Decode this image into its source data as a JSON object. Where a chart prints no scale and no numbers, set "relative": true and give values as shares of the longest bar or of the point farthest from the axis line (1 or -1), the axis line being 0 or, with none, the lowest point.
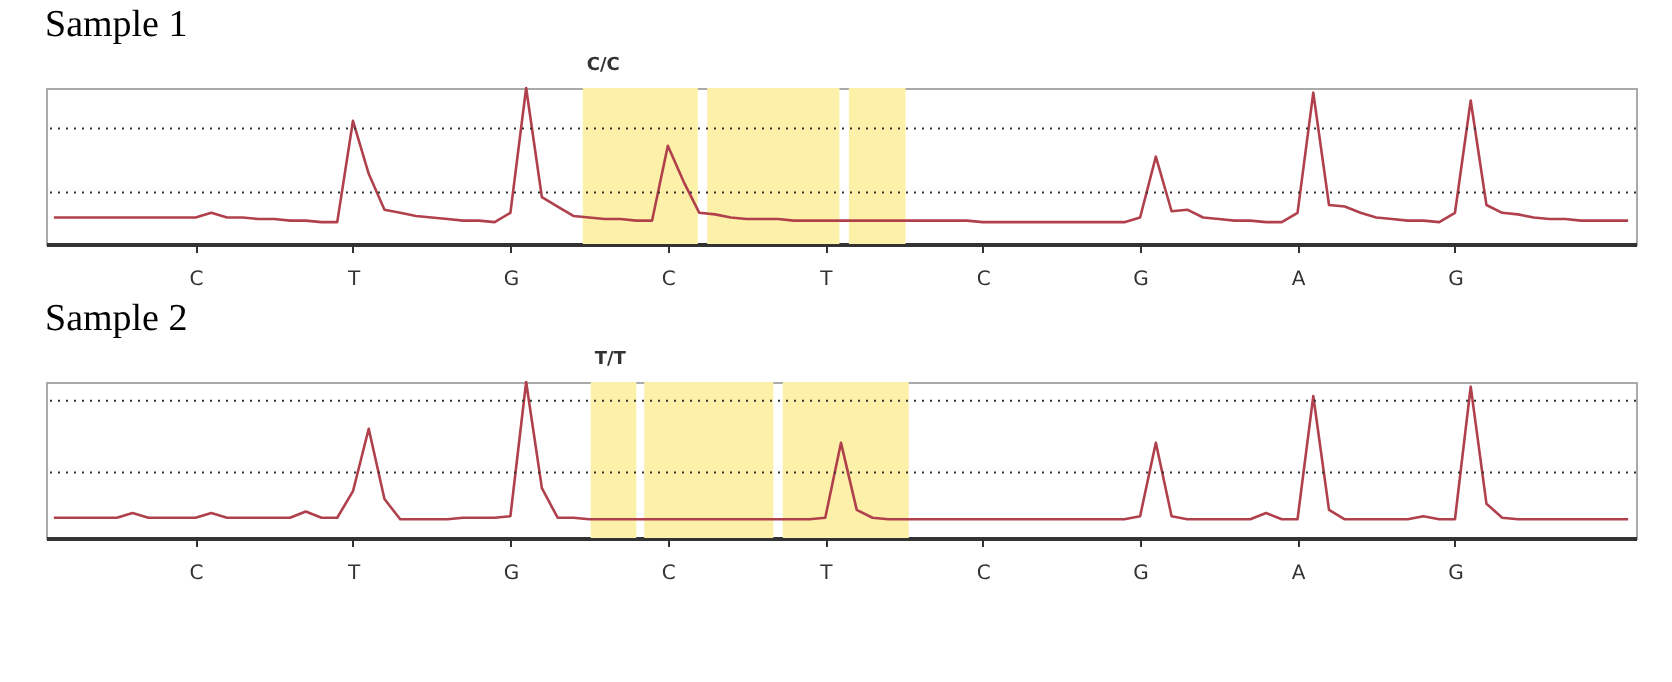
{
  "chart_data": [
    {
      "type": "line",
      "title": "Sample 1",
      "relative": true,
      "line_style": "solid",
      "marker": "none",
      "categories": [
        null,
        null,
        null,
        null,
        null,
        null,
        null,
        null,
        null,
        "C",
        null,
        null,
        null,
        null,
        null,
        null,
        null,
        null,
        null,
        "T",
        null,
        null,
        null,
        null,
        null,
        null,
        null,
        null,
        null,
        "G",
        null,
        null,
        null,
        null,
        null,
        null,
        null,
        null,
        null,
        "C",
        null,
        null,
        null,
        null,
        null,
        null,
        null,
        null,
        null,
        "T",
        null,
        null,
        null,
        null,
        null,
        null,
        null,
        null,
        null,
        "C",
        null,
        null,
        null,
        null,
        null,
        null,
        null,
        null,
        null,
        "G",
        null,
        null,
        null,
        null,
        null,
        null,
        null,
        null,
        null,
        "A",
        null,
        null,
        null,
        null,
        null,
        null,
        null,
        null,
        null,
        "G",
        null,
        null,
        null,
        null,
        null,
        null,
        null,
        null,
        null,
        null,
        null
      ],
      "series": [
        {
          "color": "#b0404c",
          "values": [
            0.17,
            0.17,
            0.17,
            0.17,
            0.17,
            0.17,
            0.17,
            0.17,
            0.17,
            0.17,
            0.2,
            0.17,
            0.17,
            0.16,
            0.16,
            0.15,
            0.15,
            0.14,
            0.14,
            0.79,
            0.45,
            0.22,
            0.2,
            0.18,
            0.17,
            0.16,
            0.15,
            0.15,
            0.14,
            0.2,
            1.0,
            0.3,
            0.24,
            0.18,
            0.17,
            0.16,
            0.16,
            0.15,
            0.15,
            0.63,
            0.4,
            0.2,
            0.19,
            0.17,
            0.16,
            0.16,
            0.16,
            0.15,
            0.15,
            0.15,
            0.15,
            0.15,
            0.15,
            0.15,
            0.15,
            0.15,
            0.15,
            0.15,
            0.15,
            0.14,
            0.14,
            0.14,
            0.14,
            0.14,
            0.14,
            0.14,
            0.14,
            0.14,
            0.14,
            0.17,
            0.56,
            0.21,
            0.22,
            0.17,
            0.16,
            0.15,
            0.15,
            0.14,
            0.14,
            0.2,
            0.97,
            0.25,
            0.24,
            0.2,
            0.17,
            0.16,
            0.15,
            0.15,
            0.14,
            0.2,
            0.92,
            0.25,
            0.2,
            0.19,
            0.17,
            0.16,
            0.16,
            0.15,
            0.15,
            0.15,
            0.15
          ]
        }
      ],
      "ref_lines": [
        {
          "axis": "y",
          "value": 0.74,
          "color": "#333333",
          "line_style": "dotted"
        },
        {
          "axis": "y",
          "value": 0.33,
          "color": "#333333",
          "line_style": "dotted"
        }
      ],
      "annotations": [
        "C/C"
      ]
    },
    {
      "type": "line",
      "title": "Sample 2",
      "relative": true,
      "line_style": "solid",
      "marker": "none",
      "categories": [
        null,
        null,
        null,
        null,
        null,
        null,
        null,
        null,
        null,
        "C",
        null,
        null,
        null,
        null,
        null,
        null,
        null,
        null,
        null,
        "T",
        null,
        null,
        null,
        null,
        null,
        null,
        null,
        null,
        null,
        "G",
        null,
        null,
        null,
        null,
        null,
        null,
        null,
        null,
        null,
        "C",
        null,
        null,
        null,
        null,
        null,
        null,
        null,
        null,
        null,
        "T",
        null,
        null,
        null,
        null,
        null,
        null,
        null,
        null,
        null,
        "C",
        null,
        null,
        null,
        null,
        null,
        null,
        null,
        null,
        null,
        "G",
        null,
        null,
        null,
        null,
        null,
        null,
        null,
        null,
        null,
        "A",
        null,
        null,
        null,
        null,
        null,
        null,
        null,
        null,
        null,
        "G",
        null,
        null,
        null,
        null,
        null,
        null,
        null,
        null,
        null,
        null,
        null
      ],
      "series": [
        {
          "color": "#b0404c",
          "values": [
            0.13,
            0.13,
            0.13,
            0.13,
            0.13,
            0.16,
            0.13,
            0.13,
            0.13,
            0.13,
            0.16,
            0.13,
            0.13,
            0.13,
            0.13,
            0.13,
            0.17,
            0.13,
            0.13,
            0.3,
            0.7,
            0.25,
            0.12,
            0.12,
            0.12,
            0.12,
            0.13,
            0.13,
            0.13,
            0.14,
            1.0,
            0.32,
            0.13,
            0.13,
            0.12,
            0.12,
            0.12,
            0.12,
            0.12,
            0.12,
            0.12,
            0.12,
            0.12,
            0.12,
            0.12,
            0.12,
            0.12,
            0.12,
            0.12,
            0.13,
            0.61,
            0.18,
            0.13,
            0.12,
            0.12,
            0.12,
            0.12,
            0.12,
            0.12,
            0.12,
            0.12,
            0.12,
            0.12,
            0.12,
            0.12,
            0.12,
            0.12,
            0.12,
            0.12,
            0.14,
            0.61,
            0.14,
            0.12,
            0.12,
            0.12,
            0.12,
            0.12,
            0.16,
            0.12,
            0.12,
            0.91,
            0.18,
            0.12,
            0.12,
            0.12,
            0.12,
            0.12,
            0.14,
            0.12,
            0.12,
            0.97,
            0.22,
            0.13,
            0.12,
            0.12,
            0.12,
            0.12,
            0.12,
            0.12,
            0.12,
            0.12
          ]
        }
      ],
      "ref_lines": [
        {
          "axis": "y",
          "value": 0.88,
          "color": "#333333",
          "line_style": "dotted"
        },
        {
          "axis": "y",
          "value": 0.42,
          "color": "#333333",
          "line_style": "dotted"
        }
      ],
      "annotations": [
        "T/T"
      ]
    }
  ]
}
